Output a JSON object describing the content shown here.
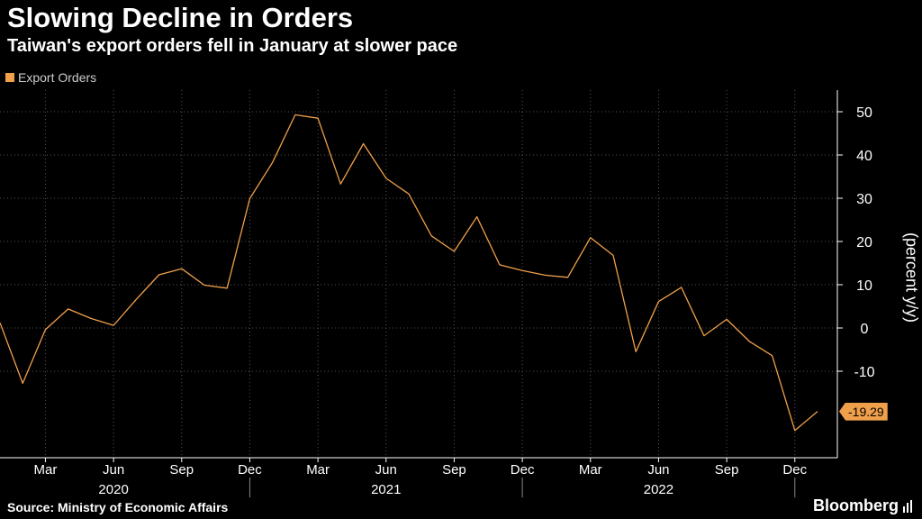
{
  "header": {
    "title": "Slowing Decline in Orders",
    "subtitle": "Taiwan's export orders fell in January at slower pace"
  },
  "footer": {
    "source": "Source: Ministry of Economic Affairs",
    "brand": "Bloomberg"
  },
  "colors": {
    "background": "#000000",
    "series": "#f0a04b",
    "grid": "#555555",
    "axis": "#ffffff"
  },
  "chart_data": {
    "type": "line",
    "title": "Slowing Decline in Orders",
    "subtitle": "Taiwan's export orders fell in January at slower pace",
    "ylabel": "(percent y/y)",
    "xlabel": "",
    "ylim": [
      -30,
      55
    ],
    "y_ticks": [
      50,
      40,
      30,
      20,
      10,
      0,
      -10
    ],
    "grid": true,
    "legend": {
      "placement": "top-left",
      "entries": [
        "Export Orders"
      ]
    },
    "x_month_ticks": [
      {
        "label": "Mar",
        "date": "2020-03"
      },
      {
        "label": "Jun",
        "date": "2020-06"
      },
      {
        "label": "Sep",
        "date": "2020-09"
      },
      {
        "label": "Dec",
        "date": "2020-12"
      },
      {
        "label": "Mar",
        "date": "2021-03"
      },
      {
        "label": "Jun",
        "date": "2021-06"
      },
      {
        "label": "Sep",
        "date": "2021-09"
      },
      {
        "label": "Dec",
        "date": "2021-12"
      },
      {
        "label": "Mar",
        "date": "2022-03"
      },
      {
        "label": "Jun",
        "date": "2022-06"
      },
      {
        "label": "Sep",
        "date": "2022-09"
      },
      {
        "label": "Dec",
        "date": "2022-12"
      }
    ],
    "x_year_labels": [
      {
        "label": "2020",
        "center": "2020-06"
      },
      {
        "label": "2021",
        "center": "2021-06"
      },
      {
        "label": "2022",
        "center": "2022-06"
      }
    ],
    "x_year_separators": [
      "2020-12",
      "2021-12",
      "2022-12"
    ],
    "series": [
      {
        "name": "Export Orders",
        "x": [
          "2020-01",
          "2020-02",
          "2020-03",
          "2020-04",
          "2020-05",
          "2020-06",
          "2020-07",
          "2020-08",
          "2020-09",
          "2020-10",
          "2020-11",
          "2020-12",
          "2021-01",
          "2021-02",
          "2021-03",
          "2021-04",
          "2021-05",
          "2021-06",
          "2021-07",
          "2021-08",
          "2021-09",
          "2021-10",
          "2021-11",
          "2021-12",
          "2022-01",
          "2022-02",
          "2022-03",
          "2022-04",
          "2022-05",
          "2022-06",
          "2022-07",
          "2022-08",
          "2022-09",
          "2022-10",
          "2022-11",
          "2022-12",
          "2023-01"
        ],
        "values": [
          1.2,
          -12.8,
          -0.4,
          4.4,
          2.2,
          0.6,
          6.6,
          12.3,
          13.7,
          9.9,
          9.2,
          29.9,
          38.3,
          49.3,
          48.5,
          33.3,
          42.6,
          34.6,
          31.0,
          21.3,
          17.7,
          25.7,
          14.6,
          13.3,
          12.2,
          11.7,
          20.9,
          16.8,
          -5.5,
          6.1,
          9.4,
          -1.8,
          2.0,
          -3.1,
          -6.4,
          -23.7,
          -19.29
        ]
      }
    ],
    "last_value_label": "-19.29"
  }
}
